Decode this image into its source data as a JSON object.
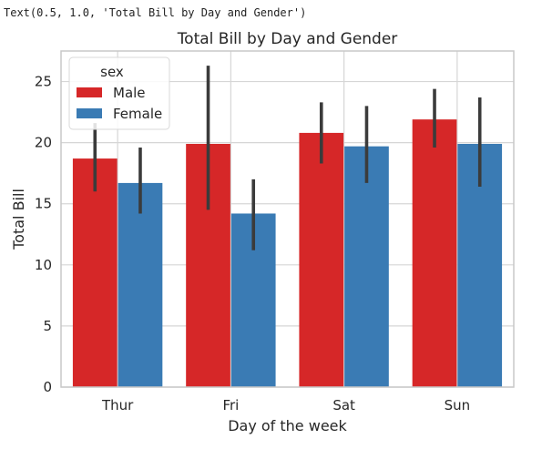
{
  "output_repr": "Text(0.5, 1.0, 'Total Bill by Day and Gender')",
  "colors": {
    "male": "#d62728",
    "female": "#3a7bb4",
    "errorbar": "#3b3b3b",
    "grid": "#d6d6d6",
    "spine": "#c8c8c8"
  },
  "chart_data": {
    "type": "bar",
    "title": "Total Bill by Day and Gender",
    "xlabel": "Day of the week",
    "ylabel": "Total Bill",
    "categories": [
      "Thur",
      "Fri",
      "Sat",
      "Sun"
    ],
    "ylim": [
      0,
      27.5
    ],
    "yticks": [
      0,
      5,
      10,
      15,
      20,
      25
    ],
    "grid": true,
    "legend": {
      "title": "sex",
      "placement": "top-left"
    },
    "series": [
      {
        "name": "Male",
        "color": "#d62728",
        "values": [
          18.7,
          19.9,
          20.8,
          21.9
        ],
        "ci_low": [
          16.0,
          14.5,
          18.3,
          19.6
        ],
        "ci_high": [
          21.6,
          26.3,
          23.3,
          24.4
        ]
      },
      {
        "name": "Female",
        "color": "#3a7bb4",
        "values": [
          16.7,
          14.2,
          19.7,
          19.9
        ],
        "ci_low": [
          14.2,
          11.2,
          16.7,
          16.4
        ],
        "ci_high": [
          19.6,
          17.0,
          23.0,
          23.7
        ]
      }
    ]
  }
}
